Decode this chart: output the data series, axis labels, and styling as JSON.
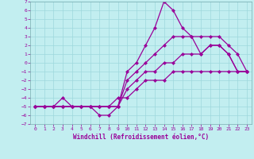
{
  "xlabel": "Windchill (Refroidissement éolien,°C)",
  "xlim": [
    -0.5,
    23.5
  ],
  "ylim": [
    -7,
    7
  ],
  "xticks": [
    0,
    1,
    2,
    3,
    4,
    5,
    6,
    7,
    8,
    9,
    10,
    11,
    12,
    13,
    14,
    15,
    16,
    17,
    18,
    19,
    20,
    21,
    22,
    23
  ],
  "yticks": [
    7,
    6,
    5,
    4,
    3,
    2,
    1,
    0,
    -1,
    -2,
    -3,
    -4,
    -5,
    -6,
    -7
  ],
  "bg_color": "#c2eef0",
  "grid_color": "#9dd8dc",
  "line_color": "#990099",
  "line_width": 0.9,
  "marker": "D",
  "marker_size": 2.2,
  "curves": [
    {
      "x": [
        0,
        1,
        2,
        3,
        4,
        5,
        6,
        7,
        8,
        9,
        10,
        11,
        12,
        13,
        14,
        15,
        16,
        17,
        18,
        19,
        20,
        21,
        22,
        23
      ],
      "y": [
        -5,
        -5,
        -5,
        -5,
        -5,
        -5,
        -5,
        -6,
        -6,
        -5,
        -1,
        0,
        2,
        4,
        7,
        6,
        4,
        3,
        1,
        2,
        2,
        1,
        -1,
        -1
      ]
    },
    {
      "x": [
        0,
        1,
        2,
        3,
        4,
        5,
        6,
        7,
        8,
        9,
        10,
        11,
        12,
        13,
        14,
        15,
        16,
        17,
        18,
        19,
        20,
        21,
        22,
        23
      ],
      "y": [
        -5,
        -5,
        -5,
        -5,
        -5,
        -5,
        -5,
        -5,
        -5,
        -5,
        -2,
        -1,
        0,
        1,
        2,
        3,
        3,
        3,
        3,
        3,
        3,
        2,
        1,
        -1
      ]
    },
    {
      "x": [
        0,
        1,
        2,
        3,
        4,
        5,
        6,
        7,
        8,
        9,
        10,
        11,
        12,
        13,
        14,
        15,
        16,
        17,
        18,
        19,
        20,
        21,
        22,
        23
      ],
      "y": [
        -5,
        -5,
        -5,
        -5,
        -5,
        -5,
        -5,
        -5,
        -5,
        -5,
        -3,
        -2,
        -1,
        -1,
        0,
        0,
        1,
        1,
        1,
        2,
        2,
        1,
        -1,
        -1
      ]
    },
    {
      "x": [
        0,
        1,
        2,
        3,
        4,
        5,
        6,
        7,
        8,
        9,
        10,
        11,
        12,
        13,
        14,
        15,
        16,
        17,
        18,
        19,
        20,
        21,
        22,
        23
      ],
      "y": [
        -5,
        -5,
        -5,
        -4,
        -5,
        -5,
        -5,
        -5,
        -5,
        -4,
        -4,
        -3,
        -2,
        -2,
        -2,
        -1,
        -1,
        -1,
        -1,
        -1,
        -1,
        -1,
        -1,
        -1
      ]
    }
  ]
}
